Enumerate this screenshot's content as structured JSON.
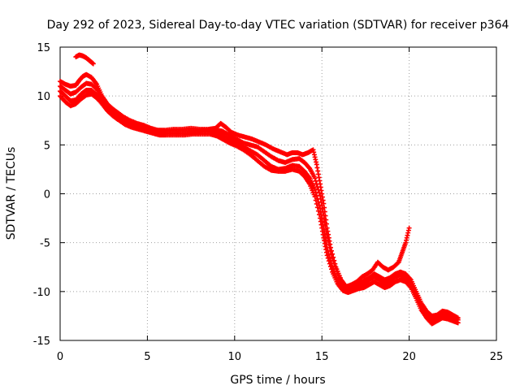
{
  "chart_data": {
    "type": "scatter",
    "title": "Day 292 of 2023, Sidereal Day-to-day VTEC variation (SDTVAR) for receiver p364",
    "xlabel": "GPS time / hours",
    "ylabel": "SDTVAR / TECUs",
    "xlim": [
      0,
      25
    ],
    "ylim": [
      -15,
      15
    ],
    "x_ticks": [
      0,
      5,
      10,
      15,
      20,
      25
    ],
    "y_ticks": [
      -15,
      -10,
      -5,
      0,
      5,
      10,
      15
    ],
    "grid": true,
    "marker": "plus",
    "series": [
      {
        "name": "track-1",
        "color": "#ff0000",
        "points": [
          [
            0.0,
            11.5
          ],
          [
            0.3,
            11.2
          ],
          [
            0.6,
            11.0
          ],
          [
            0.9,
            11.1
          ],
          [
            1.1,
            11.6
          ],
          [
            1.3,
            12.0
          ],
          [
            1.5,
            12.2
          ],
          [
            1.8,
            11.9
          ],
          [
            2.1,
            11.2
          ],
          [
            2.4,
            10.0
          ],
          [
            2.7,
            9.2
          ],
          [
            3.0,
            8.7
          ],
          [
            3.3,
            8.3
          ],
          [
            3.6,
            7.9
          ],
          [
            4.0,
            7.5
          ],
          [
            4.4,
            7.2
          ],
          [
            4.8,
            7.0
          ],
          [
            5.2,
            6.7
          ],
          [
            5.6,
            6.5
          ],
          [
            6.0,
            6.5
          ],
          [
            6.5,
            6.6
          ],
          [
            7.0,
            6.6
          ],
          [
            7.5,
            6.7
          ],
          [
            8.0,
            6.6
          ],
          [
            8.5,
            6.6
          ],
          [
            8.9,
            6.7
          ],
          [
            9.2,
            7.2
          ],
          [
            9.5,
            6.8
          ],
          [
            9.8,
            6.3
          ],
          [
            10.2,
            6.0
          ],
          [
            10.6,
            5.8
          ],
          [
            11.0,
            5.6
          ],
          [
            11.4,
            5.3
          ],
          [
            11.8,
            5.0
          ],
          [
            12.2,
            4.6
          ],
          [
            12.6,
            4.3
          ],
          [
            13.0,
            4.0
          ],
          [
            13.3,
            4.2
          ],
          [
            13.6,
            4.2
          ],
          [
            13.9,
            4.0
          ],
          [
            14.2,
            4.2
          ],
          [
            14.5,
            4.5
          ],
          [
            14.7,
            3.0
          ],
          [
            14.9,
            1.0
          ],
          [
            15.1,
            -1.0
          ],
          [
            15.3,
            -3.5
          ],
          [
            15.5,
            -5.5
          ],
          [
            15.8,
            -7.5
          ],
          [
            16.1,
            -8.8
          ],
          [
            16.4,
            -9.5
          ],
          [
            16.7,
            -9.3
          ],
          [
            17.0,
            -9.0
          ],
          [
            17.3,
            -8.5
          ],
          [
            17.6,
            -8.2
          ],
          [
            17.9,
            -7.8
          ],
          [
            18.2,
            -7.0
          ],
          [
            18.5,
            -7.5
          ],
          [
            18.8,
            -7.8
          ],
          [
            19.1,
            -7.5
          ],
          [
            19.4,
            -7.0
          ],
          [
            19.6,
            -6.0
          ],
          [
            19.8,
            -5.0
          ],
          [
            20.0,
            -3.5
          ]
        ]
      },
      {
        "name": "track-2",
        "color": "#ff0000",
        "points": [
          [
            0.0,
            10.5
          ],
          [
            0.3,
            10.0
          ],
          [
            0.6,
            9.5
          ],
          [
            0.9,
            9.6
          ],
          [
            1.2,
            10.2
          ],
          [
            1.5,
            10.6
          ],
          [
            1.8,
            10.6
          ],
          [
            2.1,
            10.1
          ],
          [
            2.4,
            9.4
          ],
          [
            2.7,
            8.7
          ],
          [
            3.0,
            8.2
          ],
          [
            3.3,
            7.8
          ],
          [
            3.7,
            7.3
          ],
          [
            4.1,
            7.0
          ],
          [
            4.5,
            6.8
          ],
          [
            4.9,
            6.5
          ],
          [
            5.3,
            6.3
          ],
          [
            5.7,
            6.2
          ],
          [
            6.1,
            6.2
          ],
          [
            6.6,
            6.2
          ],
          [
            7.1,
            6.2
          ],
          [
            7.6,
            6.2
          ],
          [
            8.1,
            6.3
          ],
          [
            8.6,
            6.3
          ],
          [
            9.0,
            6.2
          ],
          [
            9.3,
            6.0
          ],
          [
            9.7,
            5.6
          ],
          [
            10.1,
            5.2
          ],
          [
            10.5,
            4.8
          ],
          [
            10.9,
            4.4
          ],
          [
            11.3,
            4.0
          ],
          [
            11.7,
            3.4
          ],
          [
            12.1,
            2.8
          ],
          [
            12.5,
            2.5
          ],
          [
            12.9,
            2.6
          ],
          [
            13.3,
            2.9
          ],
          [
            13.7,
            2.8
          ],
          [
            14.0,
            2.3
          ],
          [
            14.3,
            1.6
          ],
          [
            14.6,
            0.5
          ],
          [
            14.9,
            -1.5
          ],
          [
            15.1,
            -3.5
          ],
          [
            15.3,
            -5.5
          ],
          [
            15.6,
            -7.5
          ],
          [
            15.9,
            -8.8
          ],
          [
            16.2,
            -9.6
          ],
          [
            16.5,
            -10.0
          ],
          [
            16.8,
            -9.8
          ],
          [
            17.1,
            -9.5
          ],
          [
            17.4,
            -9.3
          ],
          [
            17.7,
            -8.8
          ],
          [
            18.0,
            -8.5
          ],
          [
            18.3,
            -8.8
          ],
          [
            18.6,
            -9.2
          ],
          [
            18.9,
            -9.0
          ],
          [
            19.2,
            -8.5
          ],
          [
            19.5,
            -8.3
          ],
          [
            19.8,
            -8.6
          ],
          [
            20.1,
            -9.2
          ],
          [
            20.4,
            -10.3
          ],
          [
            20.7,
            -11.5
          ],
          [
            21.0,
            -12.3
          ],
          [
            21.3,
            -12.8
          ],
          [
            21.6,
            -12.6
          ],
          [
            21.9,
            -12.3
          ],
          [
            22.2,
            -12.4
          ],
          [
            22.5,
            -12.6
          ],
          [
            22.8,
            -12.9
          ]
        ]
      },
      {
        "name": "track-3",
        "color": "#ff0000",
        "points": [
          [
            0.0,
            11.0
          ],
          [
            0.3,
            10.6
          ],
          [
            0.6,
            10.2
          ],
          [
            0.9,
            10.4
          ],
          [
            1.2,
            10.9
          ],
          [
            1.5,
            11.3
          ],
          [
            1.8,
            11.2
          ],
          [
            2.1,
            10.7
          ],
          [
            2.4,
            9.9
          ],
          [
            2.7,
            9.1
          ],
          [
            3.0,
            8.5
          ],
          [
            3.3,
            8.1
          ],
          [
            3.7,
            7.7
          ],
          [
            4.1,
            7.3
          ],
          [
            4.5,
            7.0
          ],
          [
            4.9,
            6.7
          ],
          [
            5.3,
            6.5
          ],
          [
            5.7,
            6.4
          ],
          [
            6.1,
            6.4
          ],
          [
            6.6,
            6.4
          ],
          [
            7.1,
            6.4
          ],
          [
            7.6,
            6.4
          ],
          [
            8.1,
            6.5
          ],
          [
            8.6,
            6.5
          ],
          [
            9.0,
            6.5
          ],
          [
            9.3,
            6.4
          ],
          [
            9.7,
            6.0
          ],
          [
            10.1,
            5.6
          ],
          [
            10.5,
            5.2
          ],
          [
            10.9,
            5.0
          ],
          [
            11.3,
            4.8
          ],
          [
            11.7,
            4.3
          ],
          [
            12.1,
            3.8
          ],
          [
            12.5,
            3.4
          ],
          [
            12.9,
            3.2
          ],
          [
            13.3,
            3.5
          ],
          [
            13.7,
            3.6
          ],
          [
            14.0,
            3.2
          ],
          [
            14.3,
            2.6
          ],
          [
            14.6,
            1.6
          ],
          [
            14.9,
            -0.2
          ],
          [
            15.1,
            -2.2
          ],
          [
            15.3,
            -4.4
          ],
          [
            15.6,
            -6.6
          ],
          [
            15.9,
            -8.2
          ],
          [
            16.2,
            -9.2
          ],
          [
            16.5,
            -9.7
          ],
          [
            16.8,
            -9.5
          ],
          [
            17.1,
            -9.2
          ],
          [
            17.4,
            -8.9
          ],
          [
            17.7,
            -8.6
          ],
          [
            18.0,
            -8.2
          ],
          [
            18.3,
            -8.5
          ],
          [
            18.6,
            -8.8
          ],
          [
            18.9,
            -8.6
          ],
          [
            19.2,
            -8.2
          ],
          [
            19.5,
            -8.0
          ],
          [
            19.8,
            -8.2
          ],
          [
            20.1,
            -8.8
          ],
          [
            20.4,
            -10.0
          ],
          [
            20.7,
            -11.2
          ],
          [
            21.0,
            -12.0
          ],
          [
            21.3,
            -12.5
          ],
          [
            21.6,
            -12.4
          ],
          [
            21.9,
            -12.0
          ],
          [
            22.2,
            -12.1
          ],
          [
            22.5,
            -12.4
          ],
          [
            22.8,
            -12.7
          ]
        ]
      },
      {
        "name": "track-4",
        "color": "#ff0000",
        "points": [
          [
            0.0,
            10.0
          ],
          [
            0.3,
            9.4
          ],
          [
            0.6,
            9.0
          ],
          [
            0.9,
            9.2
          ],
          [
            1.2,
            9.7
          ],
          [
            1.5,
            10.1
          ],
          [
            1.8,
            10.2
          ],
          [
            2.1,
            9.8
          ],
          [
            2.4,
            9.2
          ],
          [
            2.7,
            8.5
          ],
          [
            3.0,
            8.0
          ],
          [
            3.3,
            7.6
          ],
          [
            3.7,
            7.1
          ],
          [
            4.1,
            6.8
          ],
          [
            4.5,
            6.6
          ],
          [
            4.9,
            6.4
          ],
          [
            5.3,
            6.2
          ],
          [
            5.7,
            6.0
          ],
          [
            6.1,
            6.0
          ],
          [
            6.6,
            6.0
          ],
          [
            7.1,
            6.0
          ],
          [
            7.6,
            6.1
          ],
          [
            8.1,
            6.1
          ],
          [
            8.6,
            6.1
          ],
          [
            9.0,
            5.9
          ],
          [
            9.3,
            5.6
          ],
          [
            9.7,
            5.2
          ],
          [
            10.1,
            4.9
          ],
          [
            10.5,
            4.5
          ],
          [
            10.9,
            4.0
          ],
          [
            11.3,
            3.4
          ],
          [
            11.7,
            2.8
          ],
          [
            12.1,
            2.4
          ],
          [
            12.5,
            2.3
          ],
          [
            12.9,
            2.3
          ],
          [
            13.3,
            2.5
          ],
          [
            13.7,
            2.3
          ],
          [
            14.0,
            1.8
          ],
          [
            14.3,
            1.0
          ],
          [
            14.6,
            -0.3
          ],
          [
            14.9,
            -2.5
          ],
          [
            15.1,
            -4.5
          ],
          [
            15.3,
            -6.3
          ],
          [
            15.6,
            -8.0
          ],
          [
            15.9,
            -9.2
          ],
          [
            16.2,
            -9.9
          ],
          [
            16.5,
            -10.1
          ],
          [
            16.8,
            -9.9
          ],
          [
            17.1,
            -9.7
          ],
          [
            17.4,
            -9.6
          ],
          [
            17.7,
            -9.3
          ],
          [
            18.0,
            -9.0
          ],
          [
            18.3,
            -9.3
          ],
          [
            18.6,
            -9.6
          ],
          [
            18.9,
            -9.4
          ],
          [
            19.2,
            -9.0
          ],
          [
            19.5,
            -8.8
          ],
          [
            19.8,
            -9.0
          ],
          [
            20.1,
            -9.6
          ],
          [
            20.4,
            -10.7
          ],
          [
            20.7,
            -11.9
          ],
          [
            21.0,
            -12.7
          ],
          [
            21.3,
            -13.3
          ],
          [
            21.6,
            -13.0
          ],
          [
            21.9,
            -12.7
          ],
          [
            22.2,
            -12.8
          ],
          [
            22.5,
            -13.0
          ],
          [
            22.8,
            -13.2
          ]
        ]
      },
      {
        "name": "early-spike",
        "color": "#ff0000",
        "points": [
          [
            0.9,
            14.0
          ],
          [
            1.1,
            14.2
          ],
          [
            1.3,
            14.1
          ],
          [
            1.5,
            13.9
          ],
          [
            1.7,
            13.6
          ],
          [
            1.9,
            13.3
          ]
        ]
      }
    ]
  }
}
